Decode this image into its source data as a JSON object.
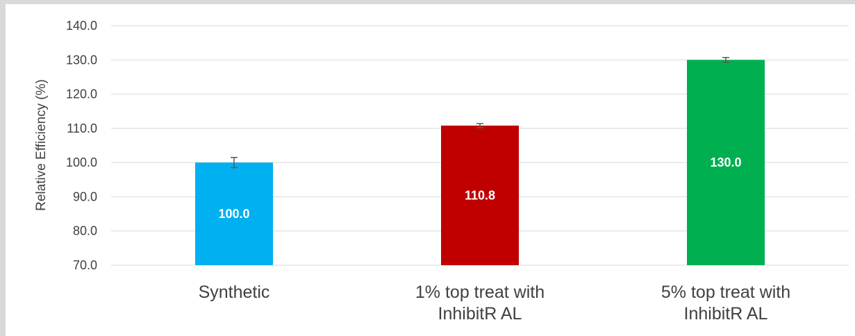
{
  "chart_data": {
    "type": "bar",
    "title": "",
    "xlabel": "",
    "ylabel": "Relative Efficiency (%)",
    "ylim": [
      70,
      140
    ],
    "yticks": [
      70,
      80,
      90,
      100,
      110,
      120,
      130,
      140
    ],
    "ytick_labels": [
      "70.0",
      "80.0",
      "90.0",
      "100.0",
      "110.0",
      "120.0",
      "130.0",
      "140.0"
    ],
    "categories": [
      "Synthetic",
      "1% top treat with InhibitR AL",
      "5% top treat with InhibitR AL"
    ],
    "category_lines": [
      [
        "Synthetic"
      ],
      [
        "1% top treat with",
        "InhibitR AL"
      ],
      [
        "5% top treat with",
        "InhibitR AL"
      ]
    ],
    "values": [
      100.0,
      110.8,
      130.0
    ],
    "value_labels": [
      "100.0",
      "110.8",
      "130.0"
    ],
    "errors": [
      1.5,
      0.6,
      0.7
    ],
    "colors": [
      "#00b0f0",
      "#c00000",
      "#00b050"
    ],
    "grid": true,
    "legend": "none"
  }
}
